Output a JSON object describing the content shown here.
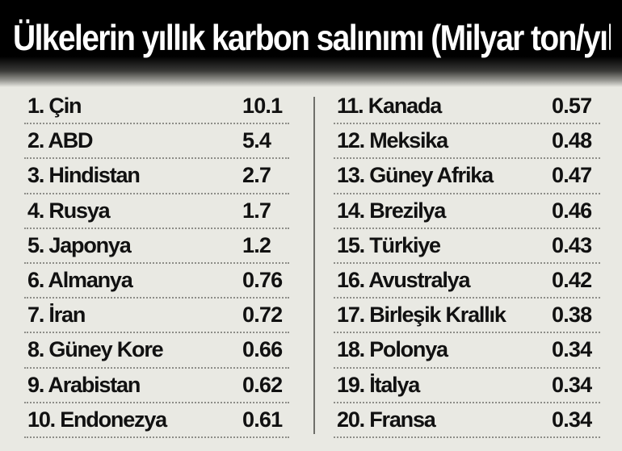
{
  "chart_data": {
    "type": "table",
    "title": "Ülkelerin yıllık karbon salınımı (Milyar ton/yıl)",
    "rows": [
      {
        "label": "1. Çin",
        "value": "10.1"
      },
      {
        "label": "2. ABD",
        "value": "5.4"
      },
      {
        "label": "3. Hindistan",
        "value": "2.7"
      },
      {
        "label": "4. Rusya",
        "value": "1.7"
      },
      {
        "label": "5. Japonya",
        "value": "1.2"
      },
      {
        "label": "6. Almanya",
        "value": "0.76"
      },
      {
        "label": "7. İran",
        "value": "0.72"
      },
      {
        "label": "8. Güney Kore",
        "value": "0.66"
      },
      {
        "label": "9. Arabistan",
        "value": "0.62"
      },
      {
        "label": "10. Endonezya",
        "value": "0.61"
      },
      {
        "label": "11. Kanada",
        "value": "0.57"
      },
      {
        "label": "12. Meksika",
        "value": "0.48"
      },
      {
        "label": "13. Güney Afrika",
        "value": "0.47"
      },
      {
        "label": "14. Brezilya",
        "value": "0.46"
      },
      {
        "label": "15. Türkiye",
        "value": "0.43"
      },
      {
        "label": "16. Avustralya",
        "value": "0.42"
      },
      {
        "label": "17. Birleşik Krallık",
        "value": "0.38"
      },
      {
        "label": "18. Polonya",
        "value": "0.34"
      },
      {
        "label": "19. İtalya",
        "value": "0.34"
      },
      {
        "label": "20. Fransa",
        "value": "0.34"
      }
    ]
  },
  "colors": {
    "background": "#e9e9e3",
    "header": "#000000",
    "title_text": "#ffffff",
    "row_text": "#111111",
    "dotted_rule": "#8d8d88",
    "divider": "#6f6f6a"
  }
}
